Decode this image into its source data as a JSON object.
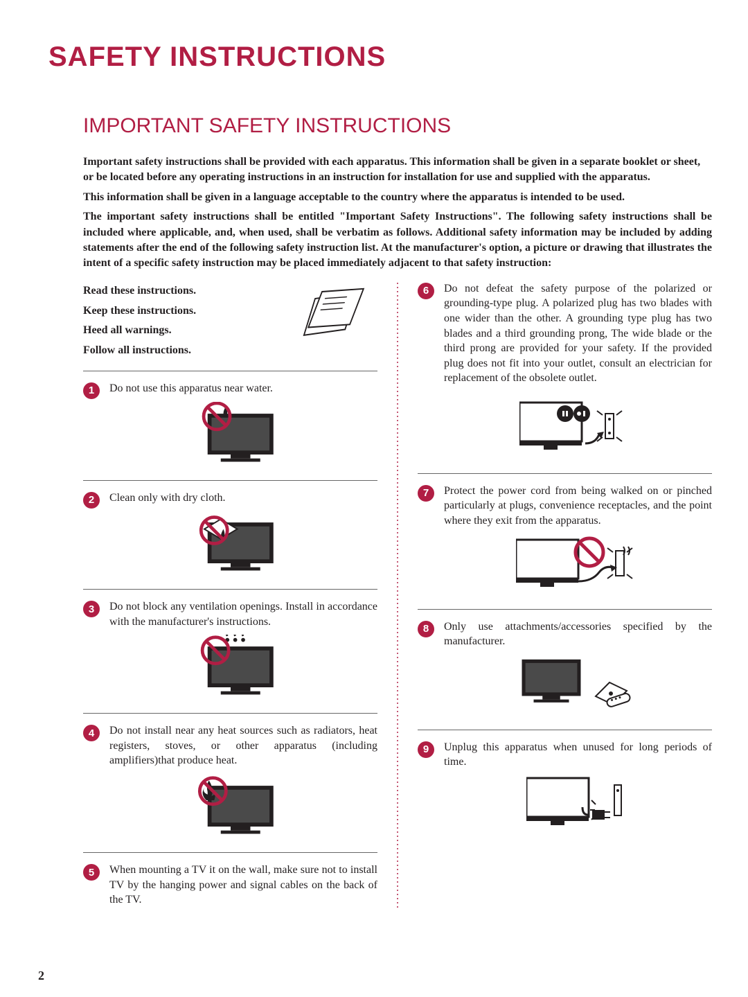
{
  "colors": {
    "accent": "#b11e44",
    "text": "#231f20",
    "background": "#ffffff",
    "rule": "#666666"
  },
  "typography": {
    "title_fontsize": 40,
    "section_fontsize": 30,
    "body_fontsize": 16,
    "title_font": "Arial",
    "body_font": "Georgia"
  },
  "page_number": "2",
  "main_title": "SAFETY INSTRUCTIONS",
  "section_title": "IMPORTANT SAFETY INSTRUCTIONS",
  "intro": {
    "p1": "Important safety instructions shall be provided with each apparatus. This information shall be given in a separate booklet or sheet, or be located before any operating instructions in an instruction for installation for use and supplied with the apparatus.",
    "p2": "This information shall be given in a language acceptable to the country where the apparatus is intended to be used.",
    "p3": "The important safety instructions shall be entitled \"Important Safety Instructions\". The following safety instructions shall be included where applicable, and, when used, shall be verbatim as follows. Additional safety information may be included by adding statements after the end of the following safety instruction list. At the manufacturer's option, a picture or drawing that illustrates the intent of a specific safety instruction may be placed immediately adjacent to that safety instruction:"
  },
  "read_block": {
    "l1": "Read these instructions.",
    "l2": "Keep these instructions.",
    "l3": "Heed all warnings.",
    "l4": "Follow all instructions."
  },
  "left_items": [
    {
      "n": "1",
      "text": "Do not use this apparatus near water.",
      "icon": "tv-nowater"
    },
    {
      "n": "2",
      "text": "Clean only with dry cloth.",
      "icon": "tv-drycloth"
    },
    {
      "n": "3",
      "text": "Do not block any ventilation openings. Install in accordance with the manufacturer's instructions.",
      "icon": "tv-vent"
    },
    {
      "n": "4",
      "text": "Do not install near any heat sources such as radiators, heat registers, stoves, or other apparatus (including amplifiers)that produce heat.",
      "icon": "tv-heat"
    },
    {
      "n": "5",
      "text": "When mounting a TV it on the wall, make sure not to install TV by the hanging power and signal cables on the back of the TV.",
      "icon": ""
    }
  ],
  "right_items": [
    {
      "n": "6",
      "text": "Do not defeat the safety purpose of the polarized or grounding-type plug. A polarized plug has two blades with one wider than the other. A grounding type plug has two blades and a third grounding prong, The wide blade or the third prong are provided for your safety. If the provided plug does not fit into your outlet, consult an electrician for replacement of the obsolete outlet.",
      "icon": "tv-plug"
    },
    {
      "n": "7",
      "text": "Protect the power cord from being walked on or pinched particularly at plugs, convenience receptacles, and the point where they exit from the apparatus.",
      "icon": "tv-cord"
    },
    {
      "n": "8",
      "text": "Only use attachments/accessories specified by the manufacturer.",
      "icon": "tv-acc"
    },
    {
      "n": "9",
      "text": "Unplug this apparatus when unused for long periods of time.",
      "icon": "tv-unplug"
    }
  ],
  "icons": {
    "prohibit_color": "#b11e44",
    "tv_fill": "#231f20"
  }
}
